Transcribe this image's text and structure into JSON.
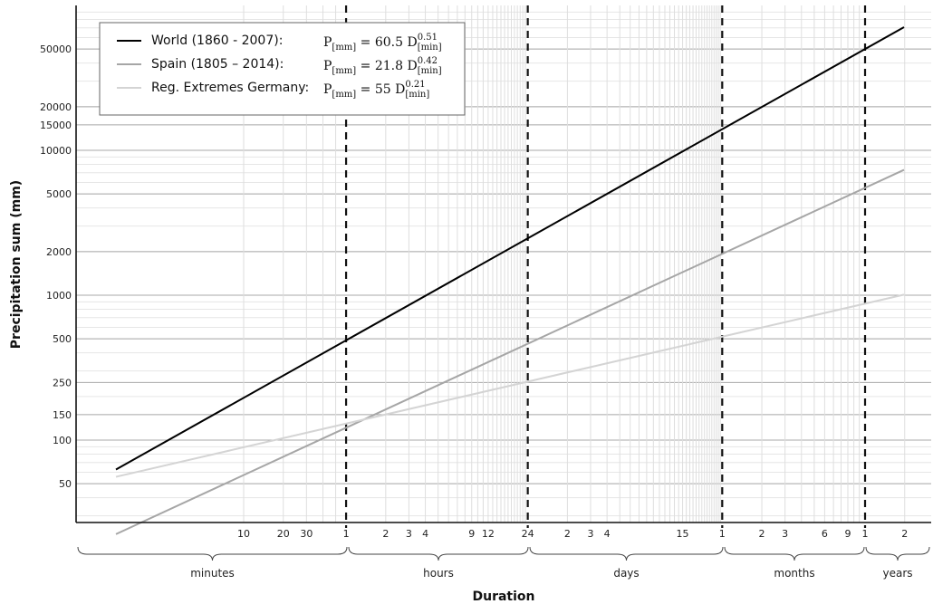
{
  "chart_data": {
    "type": "line",
    "x_scale": "log",
    "y_scale": "log",
    "x_unit": "minutes",
    "xlabel": "Duration",
    "ylabel": "Precipitation sum (mm)",
    "ylim": [
      30,
      90000
    ],
    "xlim": [
      1,
      1576800
    ],
    "grid": true,
    "legend_position": "top-left",
    "y_ticks": [
      50,
      100,
      150,
      250,
      500,
      1000,
      2000,
      5000,
      10000,
      15000,
      20000,
      50000
    ],
    "y_tick_labels": [
      "50",
      "100",
      "150",
      "250",
      "500",
      "1000",
      "2000",
      "5000",
      "10000",
      "15000",
      "20000",
      "50000"
    ],
    "x_ticks": [
      {
        "label": "10",
        "minutes": 10
      },
      {
        "label": "20",
        "minutes": 20
      },
      {
        "label": "30",
        "minutes": 30
      },
      {
        "label": "1",
        "minutes": 60
      },
      {
        "label": "2",
        "minutes": 120
      },
      {
        "label": "3",
        "minutes": 180
      },
      {
        "label": "4",
        "minutes": 240
      },
      {
        "label": "9",
        "minutes": 540
      },
      {
        "label": "12",
        "minutes": 720
      },
      {
        "label": "24",
        "minutes": 1440
      },
      {
        "label": "2",
        "minutes": 2880
      },
      {
        "label": "3",
        "minutes": 4320
      },
      {
        "label": "4",
        "minutes": 5760
      },
      {
        "label": "15",
        "minutes": 21600
      },
      {
        "label": "1",
        "minutes": 43200
      },
      {
        "label": "2",
        "minutes": 86400
      },
      {
        "label": "3",
        "minutes": 129600
      },
      {
        "label": "6",
        "minutes": 259200
      },
      {
        "label": "9",
        "minutes": 388800
      },
      {
        "label": "1",
        "minutes": 525600
      },
      {
        "label": "2",
        "minutes": 1051200
      }
    ],
    "period_boundaries_minutes": [
      60,
      1440,
      43200,
      525600
    ],
    "period_labels": [
      {
        "label": "minutes",
        "from": 1,
        "to": 60
      },
      {
        "label": "hours",
        "from": 60,
        "to": 1440
      },
      {
        "label": "days",
        "from": 1440,
        "to": 43200
      },
      {
        "label": "months",
        "from": 43200,
        "to": 525600
      },
      {
        "label": "years",
        "from": 525600,
        "to": 1051200
      }
    ],
    "series": [
      {
        "name": "World (1860 - 2007):",
        "formula": {
          "coef": "60.5",
          "exp": "0.51"
        },
        "color": "#000000",
        "x": [
          1,
          60,
          1440,
          43200,
          525600,
          1051200
        ],
        "y": [
          60.5,
          491,
          2493,
          14405,
          51900,
          73900
        ]
      },
      {
        "name": "Spain (1805 – 2014):",
        "formula": {
          "coef": "21.8",
          "exp": "0.42"
        },
        "color": "#a6a6a6",
        "x": [
          1,
          60,
          1440,
          43200,
          525600,
          1051200
        ],
        "y": [
          21.8,
          121,
          459,
          1912,
          5330,
          7100
        ]
      },
      {
        "name": "Reg. Extremes Germany:",
        "formula": {
          "coef": "55",
          "exp": "0.21"
        },
        "color": "#d4d4d4",
        "x": [
          1,
          60,
          1440,
          43200,
          525600,
          1051200
        ],
        "y": [
          55,
          130,
          254,
          520,
          881,
          1020
        ]
      }
    ],
    "formula_text": {
      "prefix": "P",
      "lhs_sub": "[mm]",
      "var": "D",
      "var_sub": "[min]"
    }
  }
}
